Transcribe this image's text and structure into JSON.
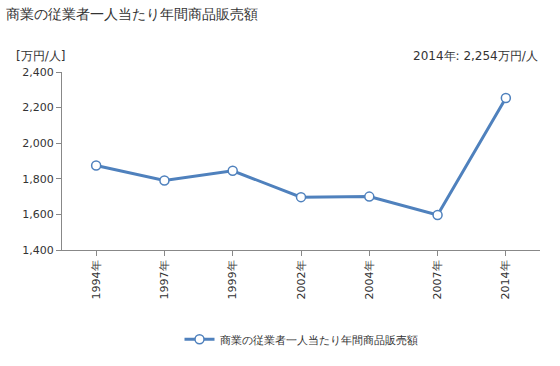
{
  "chart_data": {
    "type": "line",
    "title": "商業の従業者一人当たり年間商品販売額",
    "y_label": "[万円/人]",
    "annotations": [
      {
        "text": "2014年: 2,254万円/人"
      }
    ],
    "categories": [
      "1994年",
      "1997年",
      "1999年",
      "2002年",
      "2004年",
      "2007年",
      "2014年"
    ],
    "series": [
      {
        "name": "商業の従業者一人当たり年間商品販売額",
        "color": "#4f81bd",
        "marker": "circle",
        "line_style": "solid",
        "values": [
          1875,
          1790,
          1845,
          1697,
          1700,
          1597,
          2254
        ]
      }
    ],
    "ylim": [
      1400,
      2400
    ],
    "yticks": [
      {
        "value": 1400,
        "label": "1,400"
      },
      {
        "value": 1600,
        "label": "1,600"
      },
      {
        "value": 1800,
        "label": "1,800"
      },
      {
        "value": 2000,
        "label": "2,000"
      },
      {
        "value": 2200,
        "label": "2,200"
      },
      {
        "value": 2400,
        "label": "2,400"
      }
    ],
    "grid": false,
    "legend": "bottom"
  }
}
